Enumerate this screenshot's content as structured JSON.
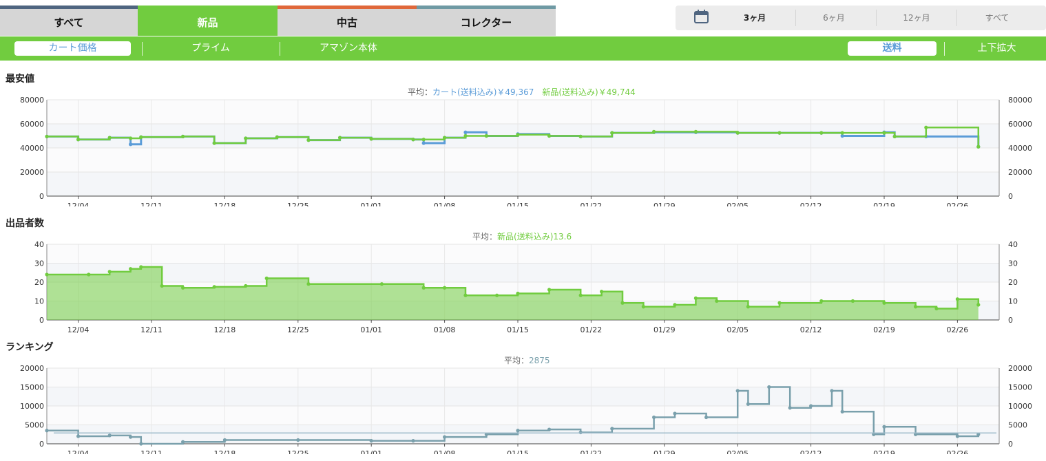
{
  "main_tabs": [
    {
      "label": "すべて",
      "accent": "#4f6580",
      "active": false
    },
    {
      "label": "新品",
      "accent": "#4f6580",
      "active": true
    },
    {
      "label": "中古",
      "accent": "#e0683a",
      "active": false
    },
    {
      "label": "コレクター",
      "accent": "#6f9aa4",
      "active": false
    }
  ],
  "range": {
    "icon": "calendar-icon",
    "options": [
      "3ヶ月",
      "6ヶ月",
      "12ヶ月",
      "すべて"
    ],
    "selected": "3ヶ月"
  },
  "subbar": {
    "cart_price": "カート価格",
    "prime": "プライム",
    "amazon": "アマゾン本体",
    "shipping": "送料",
    "zoom": "上下拡大"
  },
  "colors": {
    "green": "#71cc3f",
    "blue": "#5b9cd8",
    "gray_blue": "#7aa0ac"
  },
  "dates": [
    "12/04",
    "12/11",
    "12/18",
    "12/25",
    "01/01",
    "01/08",
    "01/15",
    "01/22",
    "01/29",
    "02/05",
    "02/12",
    "02/19",
    "02/26"
  ],
  "price": {
    "title": "最安値",
    "avg_prefix": "平均：",
    "avg_cart": "カート(送料込み)￥49,367",
    "avg_new": "新品(送料込み)￥49,744",
    "yticks": [
      "80000",
      "60000",
      "40000",
      "20000",
      "0"
    ]
  },
  "sellers": {
    "title": "出品者数",
    "avg_prefix": "平均：",
    "avg_new": "新品(送料込み)13.6",
    "yticks": [
      "40",
      "30",
      "20",
      "10",
      "0"
    ]
  },
  "ranking": {
    "title": "ランキング",
    "avg_prefix": "平均：",
    "avg_value": "2875",
    "yticks": [
      "20000",
      "15000",
      "10000",
      "5000",
      "0"
    ]
  },
  "chart_data": [
    {
      "type": "line",
      "title": "最安値",
      "ylim": [
        0,
        80000
      ],
      "x": [
        "12/01",
        "12/04",
        "12/07",
        "12/09",
        "12/10",
        "12/14",
        "12/17",
        "12/20",
        "12/23",
        "12/26",
        "12/29",
        "01/01",
        "01/05",
        "01/06",
        "01/08",
        "01/10",
        "01/12",
        "01/15",
        "01/18",
        "01/21",
        "01/24",
        "01/28",
        "02/01",
        "02/05",
        "02/09",
        "02/13",
        "02/15",
        "02/19",
        "02/20",
        "02/23",
        "02/28"
      ],
      "series": [
        {
          "name": "カート(送料込み)",
          "color": "#5b9cd8",
          "values": [
            49500,
            47000,
            48500,
            43000,
            49000,
            49500,
            44000,
            48000,
            49000,
            46500,
            48500,
            47500,
            47000,
            44000,
            48500,
            53000,
            50000,
            51500,
            50000,
            49500,
            52500,
            53000,
            53000,
            52500,
            52500,
            52500,
            50000,
            53000,
            49500,
            49500,
            41000
          ]
        },
        {
          "name": "新品(送料込み)",
          "color": "#71cc3f",
          "values": [
            49500,
            47000,
            48500,
            48000,
            49000,
            49500,
            44000,
            48000,
            49000,
            46500,
            48500,
            47500,
            47000,
            47000,
            48500,
            50000,
            50000,
            51000,
            50000,
            49500,
            52500,
            53500,
            53500,
            52500,
            52500,
            52500,
            52500,
            52500,
            49500,
            57000,
            41000
          ]
        }
      ]
    },
    {
      "type": "area",
      "title": "出品者数",
      "ylim": [
        0,
        40
      ],
      "x": [
        "12/01",
        "12/05",
        "12/07",
        "12/09",
        "12/10",
        "12/12",
        "12/14",
        "12/17",
        "12/20",
        "12/22",
        "12/26",
        "01/02",
        "01/06",
        "01/08",
        "01/10",
        "01/13",
        "01/15",
        "01/18",
        "01/21",
        "01/23",
        "01/25",
        "01/27",
        "01/30",
        "02/01",
        "02/03",
        "02/06",
        "02/09",
        "02/13",
        "02/16",
        "02/19",
        "02/22",
        "02/24",
        "02/26",
        "02/28"
      ],
      "series": [
        {
          "name": "新品(送料込み)",
          "color": "#71cc3f",
          "values": [
            24,
            24,
            25.5,
            27,
            28,
            18,
            17,
            17.5,
            18,
            22,
            19,
            19,
            17,
            17,
            13,
            13,
            14,
            16,
            13,
            15,
            9,
            7,
            8,
            11.5,
            10,
            7,
            9,
            10,
            10,
            9,
            7,
            6,
            11,
            8
          ]
        }
      ]
    },
    {
      "type": "line",
      "title": "ランキング",
      "ylim": [
        0,
        20000
      ],
      "x": [
        "12/01",
        "12/04",
        "12/07",
        "12/09",
        "12/10",
        "12/14",
        "12/18",
        "12/25",
        "01/01",
        "01/05",
        "01/08",
        "01/12",
        "01/15",
        "01/18",
        "01/21",
        "01/24",
        "01/28",
        "01/30",
        "02/02",
        "02/05",
        "02/06",
        "02/08",
        "02/10",
        "02/12",
        "02/14",
        "02/15",
        "02/18",
        "02/19",
        "02/22",
        "02/26",
        "02/28"
      ],
      "series": [
        {
          "name": "ランキング",
          "color": "#7aa0ac",
          "values": [
            3500,
            2000,
            2200,
            1800,
            0,
            500,
            1000,
            1000,
            800,
            800,
            1800,
            2500,
            3500,
            3800,
            3000,
            4000,
            7000,
            8000,
            7000,
            14000,
            10500,
            15000,
            9500,
            10000,
            14000,
            8500,
            2500,
            4500,
            2500,
            2000,
            2500
          ]
        }
      ],
      "average": 2875
    }
  ]
}
